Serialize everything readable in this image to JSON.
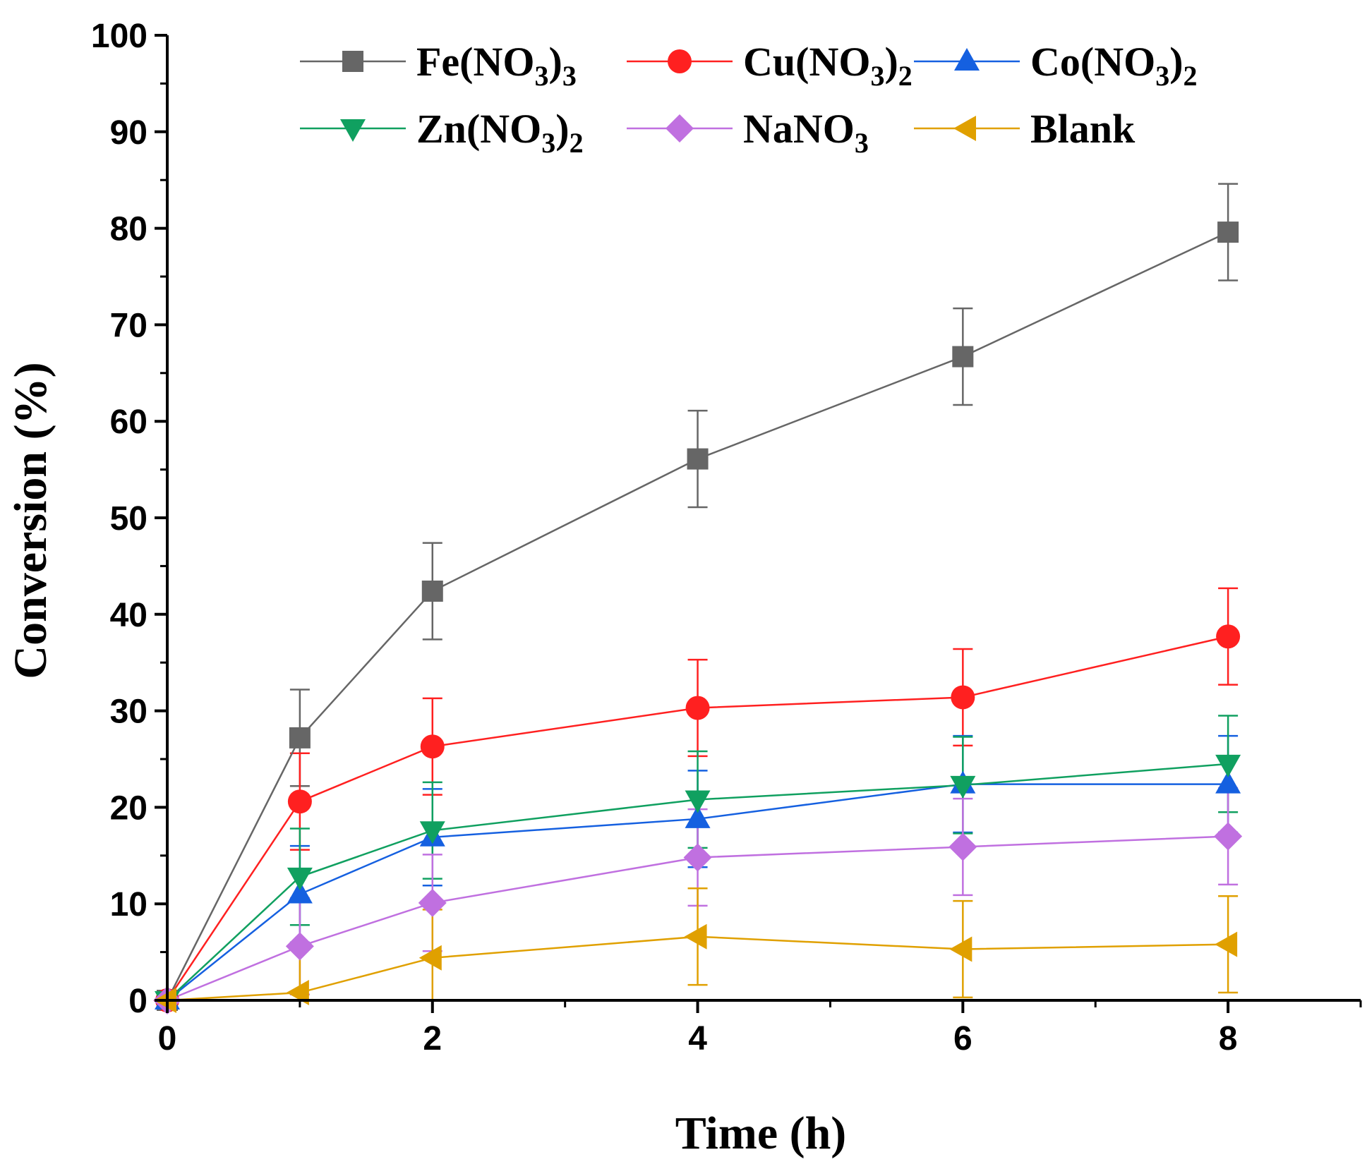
{
  "chart_data": {
    "type": "line",
    "title": "",
    "xlabel": "Time (h)",
    "ylabel": "Conversion (%)",
    "xlim": [
      0,
      9
    ],
    "ylim": [
      0,
      100
    ],
    "xticks": [
      "0",
      "2",
      "4",
      "6",
      "8"
    ],
    "yticks": [
      "0",
      "10",
      "20",
      "30",
      "40",
      "50",
      "60",
      "70",
      "80",
      "90",
      "100"
    ],
    "x": [
      0,
      1,
      2,
      4,
      6,
      8
    ],
    "error_bar": 5,
    "legend_position": "top",
    "series": [
      {
        "name": "Fe(NO3)3",
        "label_main": "Fe(NO",
        "label_sub1": "3",
        "label_close": ")",
        "label_sub2": "3",
        "color": "#666666",
        "marker": "square",
        "values": [
          0,
          27.2,
          42.4,
          56.1,
          66.7,
          79.6
        ]
      },
      {
        "name": "Cu(NO3)2",
        "label_main": "Cu(NO",
        "label_sub1": "3",
        "label_close": ")",
        "label_sub2": "2",
        "color": "#ff2020",
        "marker": "circle",
        "values": [
          0,
          20.6,
          26.3,
          30.3,
          31.4,
          37.7
        ]
      },
      {
        "name": "Co(NO3)2",
        "label_main": "Co(NO",
        "label_sub1": "3",
        "label_close": ")",
        "label_sub2": "2",
        "color": "#1560e0",
        "marker": "triangle-up",
        "values": [
          0,
          11.0,
          16.9,
          18.8,
          22.4,
          22.4
        ]
      },
      {
        "name": "Zn(NO3)2",
        "label_main": "Zn(NO",
        "label_sub1": "3",
        "label_close": ")",
        "label_sub2": "2",
        "color": "#10a060",
        "marker": "triangle-down",
        "values": [
          0,
          12.8,
          17.6,
          20.8,
          22.3,
          24.5
        ]
      },
      {
        "name": "NaNO3",
        "label_main": "NaNO",
        "label_sub1": "3",
        "label_close": "",
        "label_sub2": "",
        "color": "#c070e0",
        "marker": "diamond",
        "values": [
          0,
          5.6,
          10.1,
          14.8,
          15.9,
          17.0
        ]
      },
      {
        "name": "Blank",
        "label_main": "Blank",
        "label_sub1": "",
        "label_close": "",
        "label_sub2": "",
        "color": "#e0a000",
        "marker": "triangle-left",
        "values": [
          0,
          0.8,
          4.4,
          6.6,
          5.3,
          5.8
        ]
      }
    ]
  }
}
